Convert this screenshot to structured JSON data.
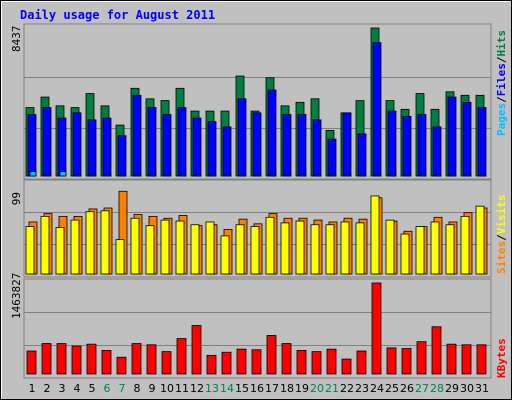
{
  "chart_data": [
    {
      "type": "bar",
      "title": "Daily usage for August 2011",
      "panel": "hits-files-pages",
      "max_label": "8437",
      "categories": [
        "1",
        "2",
        "3",
        "4",
        "5",
        "6",
        "7",
        "8",
        "9",
        "10",
        "11",
        "12",
        "13",
        "14",
        "15",
        "16",
        "17",
        "18",
        "19",
        "20",
        "21",
        "22",
        "23",
        "24",
        "25",
        "26",
        "27",
        "28",
        "29",
        "30",
        "31"
      ],
      "weekend_days": [
        "6",
        "7",
        "13",
        "14",
        "20",
        "21",
        "27",
        "28"
      ],
      "ylim": [
        0,
        8437
      ],
      "series": [
        {
          "name": "Hits",
          "color": "#008040",
          "values": [
            3900,
            4500,
            4000,
            3900,
            4700,
            4000,
            2900,
            5000,
            4400,
            4300,
            5000,
            3700,
            3700,
            3700,
            5700,
            3700,
            5600,
            4000,
            4200,
            4400,
            2600,
            3600,
            4300,
            8437,
            4300,
            3800,
            4700,
            3800,
            4800,
            4600,
            4600
          ]
        },
        {
          "name": "Files",
          "color": "#0000FF",
          "values": [
            3500,
            3900,
            3300,
            3600,
            3200,
            3300,
            2300,
            4600,
            3900,
            3500,
            3900,
            3300,
            3100,
            2800,
            4400,
            3600,
            4900,
            3500,
            3500,
            3200,
            2100,
            3600,
            2400,
            7600,
            3700,
            3400,
            3500,
            2800,
            4500,
            4200,
            3900
          ]
        },
        {
          "name": "Pages",
          "color": "#00C0FF",
          "values": [
            250,
            50,
            250,
            50,
            50,
            50,
            50,
            50,
            50,
            50,
            50,
            50,
            50,
            50,
            50,
            50,
            50,
            50,
            50,
            50,
            50,
            50,
            50,
            50,
            50,
            50,
            50,
            50,
            50,
            50,
            50
          ]
        }
      ],
      "legend": [
        "Pages",
        "Files",
        "Hits"
      ],
      "legend_separator": "/"
    },
    {
      "type": "bar",
      "panel": "sites-visits",
      "max_label": "99",
      "ylim": [
        0,
        99
      ],
      "series": [
        {
          "name": "Visits",
          "color": "#FF8000",
          "values": [
            56,
            65,
            62,
            62,
            70,
            71,
            89,
            64,
            62,
            60,
            63,
            52,
            53,
            48,
            59,
            54,
            65,
            60,
            60,
            58,
            56,
            60,
            59,
            82,
            57,
            46,
            51,
            61,
            56,
            66,
            71
          ]
        },
        {
          "name": "Sites",
          "color": "#FFFF00",
          "values": [
            51,
            62,
            50,
            58,
            67,
            68,
            37,
            60,
            52,
            58,
            57,
            53,
            56,
            41,
            53,
            51,
            61,
            55,
            57,
            53,
            53,
            56,
            55,
            84,
            58,
            43,
            51,
            56,
            53,
            62,
            73
          ]
        }
      ],
      "legend": [
        "Sites",
        "Visits"
      ],
      "legend_separator": "/"
    },
    {
      "type": "bar",
      "panel": "kbytes",
      "max_label": "1463827",
      "ylim": [
        0,
        1463827
      ],
      "series": [
        {
          "name": "KBytes",
          "color": "#FF0000",
          "values": [
            370000,
            490000,
            490000,
            450000,
            480000,
            380000,
            270000,
            490000,
            470000,
            360000,
            570000,
            780000,
            300000,
            350000,
            400000,
            390000,
            620000,
            490000,
            380000,
            360000,
            400000,
            240000,
            370000,
            1463827,
            420000,
            410000,
            520000,
            760000,
            480000,
            470000,
            470000
          ]
        }
      ],
      "legend": [
        "KBytes"
      ]
    }
  ]
}
